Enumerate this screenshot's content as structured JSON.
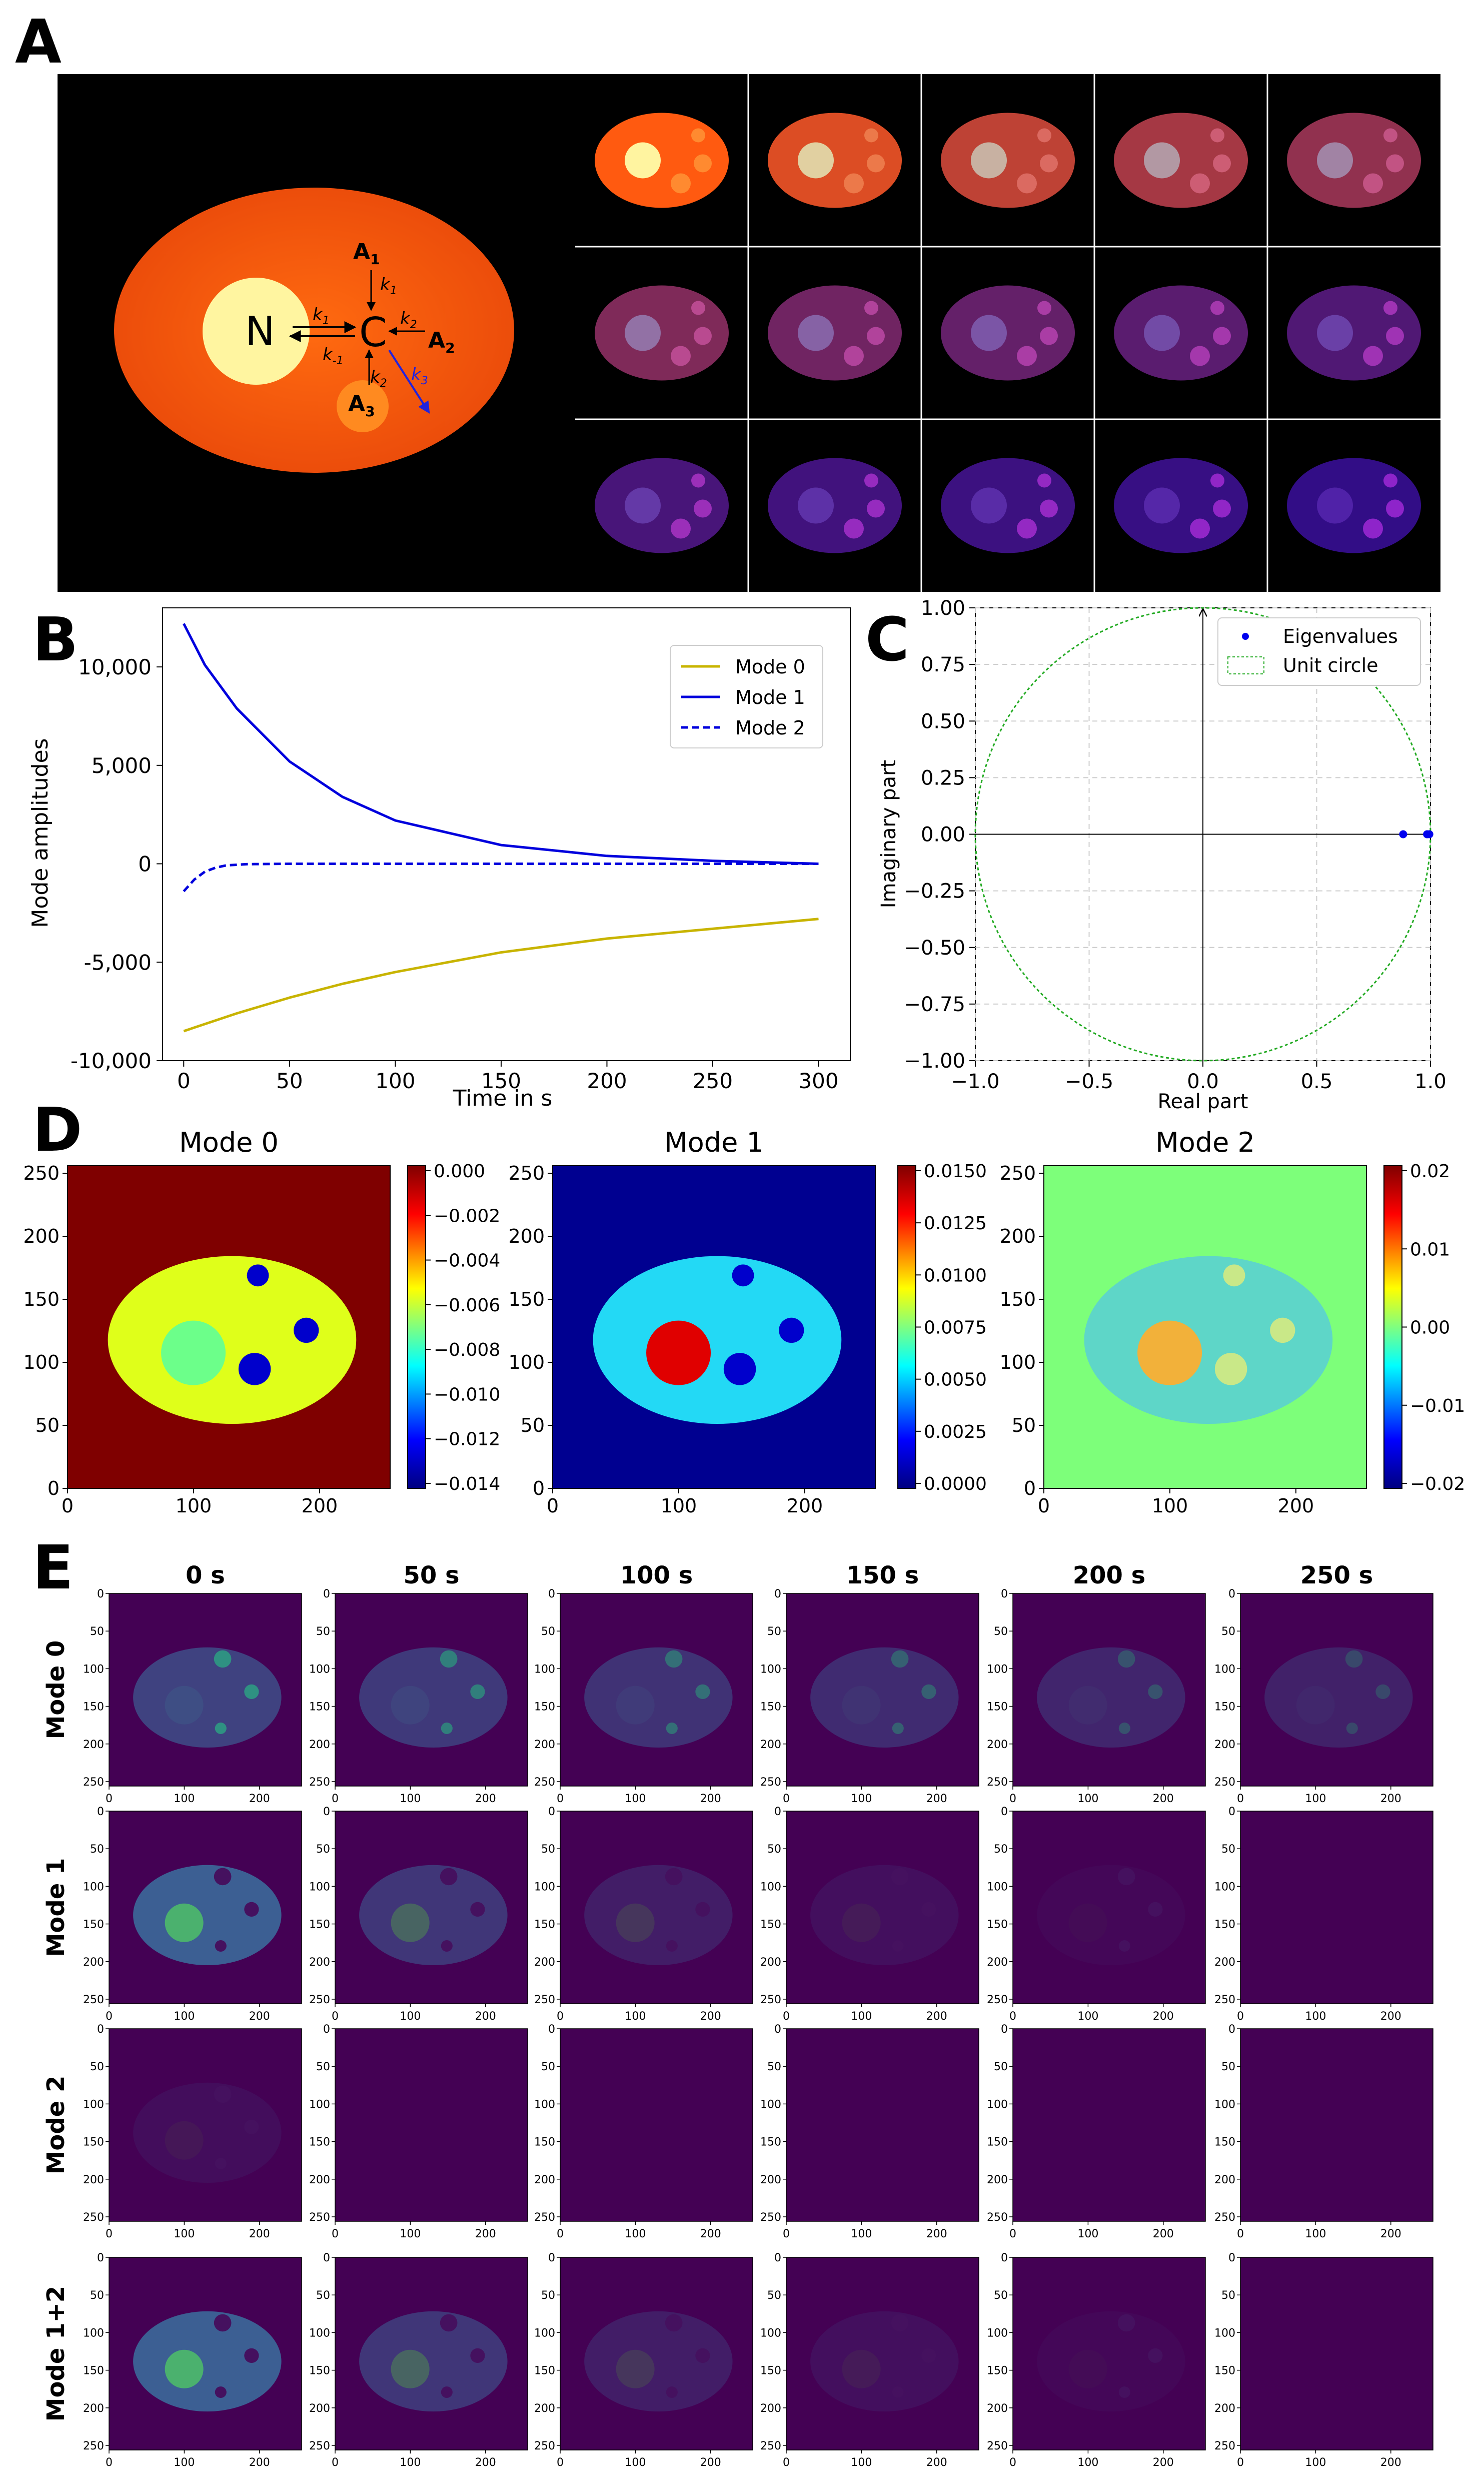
{
  "panels": {
    "a": "A",
    "b": "B",
    "c": "C",
    "d": "D",
    "e": "E"
  },
  "panel_a": {
    "labels": {
      "n": "N",
      "c": "C",
      "a1": "A",
      "a1_sub": "1",
      "a2": "A",
      "a2_sub": "2",
      "a3": "A",
      "a3_sub": "3"
    },
    "rates": {
      "k1": "k",
      "k1_sub": "1",
      "km1": "k",
      "km1_sub": "-1",
      "k1b": "k",
      "k1b_sub": "1",
      "k2": "k",
      "k2_sub": "2",
      "k2b": "k",
      "k2b_sub": "2",
      "k3": "k",
      "k3_sub": "3"
    },
    "frame_intensity": [
      1.0,
      0.86,
      0.74,
      0.64,
      0.56,
      0.49,
      0.43,
      0.38,
      0.34,
      0.3,
      0.27,
      0.24,
      0.22,
      0.2,
      0.18
    ]
  },
  "chart_data": [
    {
      "id": "B",
      "type": "line",
      "xlabel": "Time in s",
      "ylabel": "Mode amplitudes",
      "xlim": [
        -10,
        315
      ],
      "ylim": [
        -10000,
        13000
      ],
      "xticks": [
        0,
        50,
        100,
        150,
        200,
        250,
        300
      ],
      "yticks": [
        {
          "v": 10000,
          "l": "10,000"
        },
        {
          "v": 5000,
          "l": "5,000"
        },
        {
          "v": 0,
          "l": "0"
        },
        {
          "v": -5000,
          "l": "-5,000"
        },
        {
          "v": -10000,
          "l": "-10,000"
        }
      ],
      "series": [
        {
          "name": "Mode 0",
          "color": "#c8b400",
          "dash": "",
          "x": [
            0,
            25,
            50,
            75,
            100,
            150,
            200,
            250,
            300
          ],
          "values": [
            -8500,
            -7600,
            -6800,
            -6100,
            -5500,
            -4500,
            -3800,
            -3300,
            -2800
          ]
        },
        {
          "name": "Mode 1",
          "color": "#0000dd",
          "dash": "",
          "x": [
            0,
            10,
            25,
            50,
            75,
            100,
            150,
            200,
            250,
            300
          ],
          "values": [
            12200,
            10100,
            7900,
            5200,
            3400,
            2200,
            950,
            400,
            150,
            0
          ]
        },
        {
          "name": "Mode 2",
          "color": "#0000dd",
          "dash": "14,8",
          "x": [
            0,
            5,
            10,
            15,
            20,
            30,
            50,
            100,
            300
          ],
          "values": [
            -1400,
            -800,
            -400,
            -200,
            -80,
            -20,
            0,
            0,
            0
          ]
        }
      ]
    },
    {
      "id": "C",
      "type": "scatter",
      "xlabel": "Real part",
      "ylabel": "Imaginary part",
      "xlim": [
        -1,
        1
      ],
      "ylim": [
        -1,
        1
      ],
      "xticks": [
        {
          "v": -1,
          "l": "−1.0"
        },
        {
          "v": -0.5,
          "l": "−0.5"
        },
        {
          "v": 0,
          "l": "0.0"
        },
        {
          "v": 0.5,
          "l": "0.5"
        },
        {
          "v": 1,
          "l": "1.0"
        }
      ],
      "yticks": [
        {
          "v": 1,
          "l": "1.00"
        },
        {
          "v": 0.75,
          "l": "0.75"
        },
        {
          "v": 0.5,
          "l": "0.50"
        },
        {
          "v": 0.25,
          "l": "0.25"
        },
        {
          "v": 0,
          "l": "0.00"
        },
        {
          "v": -0.25,
          "l": "−0.25"
        },
        {
          "v": -0.5,
          "l": "−0.50"
        },
        {
          "v": -0.75,
          "l": "−0.75"
        },
        {
          "v": -1,
          "l": "−1.00"
        }
      ],
      "eigenvalues": [
        {
          "re": 0.88,
          "im": 0
        },
        {
          "re": 0.985,
          "im": 0
        },
        {
          "re": 0.995,
          "im": 0
        }
      ],
      "legend": {
        "eig": "Eigenvalues",
        "circle": "Unit circle"
      }
    },
    {
      "id": "D",
      "type": "heatmap",
      "axis_ticks_x": [
        "0",
        "100",
        "200"
      ],
      "axis_ticks_y": [
        "250",
        "200",
        "150",
        "100",
        "50",
        "0"
      ],
      "maps": [
        {
          "title": "Mode 0",
          "bg": "#7f0000",
          "body": "#dfff1a",
          "n": "#6cff8a",
          "spots": [
            "#0000cc",
            "#0000cc",
            "#0000cc"
          ],
          "cbar": [
            "0.000",
            "−0.002",
            "−0.004",
            "−0.006",
            "−0.008",
            "−0.010",
            "−0.012",
            "−0.014"
          ],
          "grad": [
            "#800000",
            "#ff0000",
            "#ffff00",
            "#00ffff",
            "#0000ff",
            "#000080"
          ]
        },
        {
          "title": "Mode 1",
          "bg": "#000090",
          "body": "#23d9f5",
          "n": "#e00000",
          "spots": [
            "#0000cc",
            "#0000cc",
            "#0000cc"
          ],
          "cbar": [
            "0.0150",
            "0.0125",
            "0.0100",
            "0.0075",
            "0.0050",
            "0.0025",
            "0.0000"
          ],
          "grad": [
            "#800000",
            "#ff0000",
            "#ffff00",
            "#00ffff",
            "#0000ff",
            "#000080"
          ]
        },
        {
          "title": "Mode 2",
          "bg": "#7dff7a",
          "body": "#5ed6c8",
          "n": "#f2b13a",
          "spots": [
            "#c9e888",
            "#c9e888",
            "#c9e888"
          ],
          "cbar": [
            "0.02",
            "0.01",
            "0.00",
            "−0.01",
            "−0.02"
          ],
          "grad": [
            "#800000",
            "#ff0000",
            "#ffff00",
            "#00ffff",
            "#0000ff",
            "#000080"
          ]
        }
      ]
    },
    {
      "id": "E",
      "type": "heatmap",
      "times": [
        "0 s",
        "50 s",
        "100 s",
        "150 s",
        "200 s",
        "250 s"
      ],
      "rows": [
        "Mode 0",
        "Mode 1",
        "Mode 2",
        "Mode 1+2"
      ],
      "xticks": [
        "0",
        "100",
        "200"
      ],
      "yticks": [
        "0",
        "50",
        "100",
        "150",
        "200",
        "250"
      ],
      "bg": "#440154",
      "intensity": [
        [
          0.55,
          0.48,
          0.42,
          0.36,
          0.31,
          0.27
        ],
        [
          0.8,
          0.45,
          0.24,
          0.12,
          0.05,
          0.0
        ],
        [
          0.1,
          0.0,
          0.0,
          0.0,
          0.0,
          0.0
        ],
        [
          0.8,
          0.45,
          0.24,
          0.12,
          0.05,
          0.0
        ]
      ]
    }
  ]
}
